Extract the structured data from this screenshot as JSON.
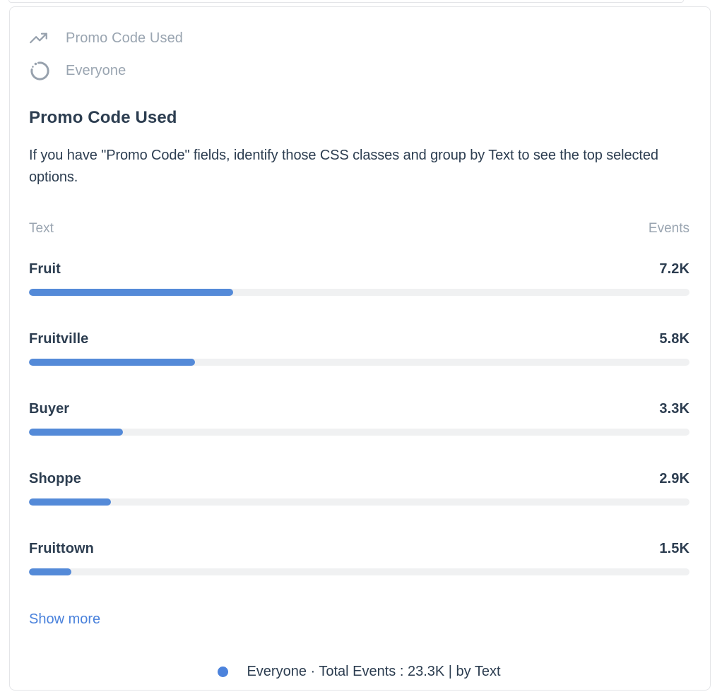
{
  "header": {
    "event_name": "Promo Code Used",
    "segment_name": "Everyone"
  },
  "title": "Promo Code Used",
  "description": "If you have \"Promo Code\" fields, identify those CSS classes and group by Text to see the top selected options.",
  "table": {
    "columns": {
      "label": "Text",
      "value": "Events"
    },
    "rows": [
      {
        "label": "Fruit",
        "value": "7.2K",
        "percent": 30.9
      },
      {
        "label": "Fruitville",
        "value": "5.8K",
        "percent": 25.1
      },
      {
        "label": "Buyer",
        "value": "3.3K",
        "percent": 14.2
      },
      {
        "label": "Shoppe",
        "value": "2.9K",
        "percent": 12.4
      },
      {
        "label": "Fruittown",
        "value": "1.5K",
        "percent": 6.4
      }
    ]
  },
  "show_more_label": "Show more",
  "legend_text": "Everyone · Total Events : 23.3K | by Text",
  "colors": {
    "bar_fill": "#548ad8",
    "bar_track": "#f0f1f2",
    "link": "#4a82dc",
    "legend_dot": "#4c83dc",
    "text_dark": "#2c3d50",
    "text_muted": "#9aa5b1",
    "icon_gray": "#97a1ad",
    "card_border": "#e4e5e8"
  },
  "chart_data": {
    "type": "bar",
    "orientation": "horizontal",
    "title": "Promo Code Used",
    "segment": "Everyone",
    "group_by": "Text",
    "categories": [
      "Fruit",
      "Fruitville",
      "Buyer",
      "Shoppe",
      "Fruittown"
    ],
    "values": [
      7200,
      5800,
      3300,
      2900,
      1500
    ],
    "value_labels": [
      "7.2K",
      "5.8K",
      "3.3K",
      "2.9K",
      "1.5K"
    ],
    "value_axis_label": "Events",
    "category_axis_label": "Text",
    "total_events": 23300,
    "total_events_label": "23.3K",
    "bar_scale_max": 23300,
    "legend": [
      "Everyone · Total Events : 23.3K | by Text"
    ],
    "legend_position": "bottom-center",
    "grid": false
  }
}
